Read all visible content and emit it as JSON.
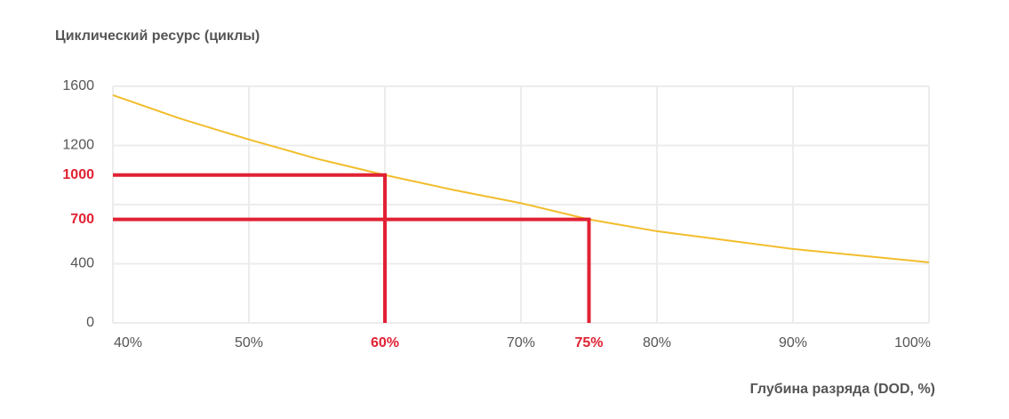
{
  "chart_data": {
    "type": "line",
    "title": "Циклический ресурс (циклы)",
    "x_label": "Глубина разряда (DOD, %)",
    "x": [
      40,
      45,
      50,
      55,
      60,
      65,
      70,
      75,
      80,
      85,
      90,
      95,
      100
    ],
    "series": [
      {
        "name": "Циклический ресурс",
        "color": "#f2bd2c",
        "values": [
          1540,
          1380,
          1240,
          1110,
          1000,
          900,
          810,
          700,
          620,
          560,
          500,
          455,
          410
        ]
      }
    ],
    "xlim": [
      40,
      100
    ],
    "ylim": [
      0,
      1600
    ],
    "xticks": [
      {
        "value": 40,
        "label": "40%"
      },
      {
        "value": 50,
        "label": "50%"
      },
      {
        "value": 60,
        "label": null
      },
      {
        "value": 70,
        "label": "70%"
      },
      {
        "value": 80,
        "label": "80%"
      },
      {
        "value": 90,
        "label": "90%"
      },
      {
        "value": 100,
        "label": "100%"
      }
    ],
    "yticks": [
      0,
      400,
      {
        "value": 800,
        "label": null
      },
      1200,
      1600
    ],
    "grid": true,
    "highlight_color": "#e02233",
    "highlights": [
      {
        "x": {
          "value": 60,
          "label": "60%"
        },
        "y": 1000
      },
      {
        "x": {
          "value": 75,
          "label": "75%"
        },
        "y": 700
      }
    ]
  }
}
